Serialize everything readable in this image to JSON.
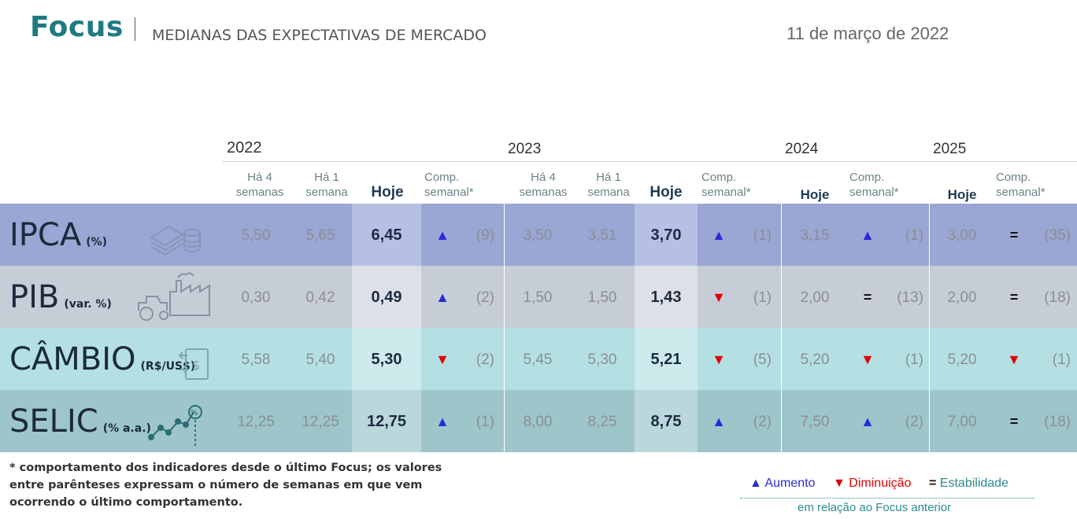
{
  "header": {
    "brand": "Focus",
    "subtitle": "MEDIANAS DAS EXPECTATIVAS DE MERCADO",
    "date": "11 de março de 2022"
  },
  "years": [
    "2022",
    "2023",
    "2024",
    "2025"
  ],
  "column_headers": {
    "ha4": "Há 4 semanas",
    "ha4_line1": "Há 4",
    "ha4_line2": "semanas",
    "ha1_line1": "Há 1",
    "ha1_line2": "semana",
    "hoje": "Hoje",
    "comp_line1": "Comp.",
    "comp_line2": "semanal*"
  },
  "rows": [
    {
      "name": "IPCA",
      "unit": "(%)",
      "icon": "money-stack-icon",
      "bg": "#9aa6d4",
      "bg_today": "#b7c0e4",
      "y2022": {
        "ha4": "5,50",
        "ha1": "5,65",
        "hoje": "6,45",
        "dir": "up",
        "cnt": "(9)"
      },
      "y2023": {
        "ha4": "3,50",
        "ha1": "3,51",
        "hoje": "3,70",
        "dir": "up",
        "cnt": "(1)"
      },
      "y2024": {
        "hoje": "3,15",
        "dir": "up",
        "cnt": "(1)"
      },
      "y2025": {
        "hoje": "3,00",
        "dir": "eq",
        "cnt": "(35)"
      }
    },
    {
      "name": "PIB",
      "unit": "(var. %)",
      "icon": "factory-tractor-icon",
      "bg": "#c7cdd6",
      "bg_today": "#dde1e7",
      "y2022": {
        "ha4": "0,30",
        "ha1": "0,42",
        "hoje": "0,49",
        "dir": "up",
        "cnt": "(2)"
      },
      "y2023": {
        "ha4": "1,50",
        "ha1": "1,50",
        "hoje": "1,43",
        "dir": "down",
        "cnt": "(1)"
      },
      "y2024": {
        "hoje": "2,00",
        "dir": "eq",
        "cnt": "(13)"
      },
      "y2025": {
        "hoje": "2,00",
        "dir": "eq",
        "cnt": "(18)"
      }
    },
    {
      "name": "CÂMBIO",
      "unit": "(R$/US$)",
      "icon": "currency-exchange-icon",
      "bg": "#b4e0e4",
      "bg_today": "#cdeaed",
      "y2022": {
        "ha4": "5,58",
        "ha1": "5,40",
        "hoje": "5,30",
        "dir": "down",
        "cnt": "(2)"
      },
      "y2023": {
        "ha4": "5,45",
        "ha1": "5,30",
        "hoje": "5,21",
        "dir": "down",
        "cnt": "(5)"
      },
      "y2024": {
        "hoje": "5,20",
        "dir": "down",
        "cnt": "(1)"
      },
      "y2025": {
        "hoje": "5,20",
        "dir": "down",
        "cnt": "(1)"
      }
    },
    {
      "name": "SELIC",
      "unit": "(% a.a.)",
      "icon": "rate-chart-icon",
      "bg": "#9ec6ca",
      "bg_today": "#bad8db",
      "y2022": {
        "ha4": "12,25",
        "ha1": "12,25",
        "hoje": "12,75",
        "dir": "up",
        "cnt": "(1)"
      },
      "y2023": {
        "ha4": "8,00",
        "ha1": "8,25",
        "hoje": "8,75",
        "dir": "up",
        "cnt": "(2)"
      },
      "y2024": {
        "hoje": "7,50",
        "dir": "up",
        "cnt": "(2)"
      },
      "y2025": {
        "hoje": "7,00",
        "dir": "eq",
        "cnt": "(18)"
      }
    }
  ],
  "footnote": "* comportamento dos indicadores desde o último Focus; os valores entre parênteses expressam o número de semanas em que vem ocorrendo o último comportamento.",
  "legend": {
    "up_label": "Aumento",
    "down_label": "Diminuição",
    "eq_label": "Estabilidade",
    "note": "em relação ao Focus anterior",
    "up_color": "#2a2ad8",
    "down_color": "#e00000",
    "eq_color": "#2c8a90"
  }
}
